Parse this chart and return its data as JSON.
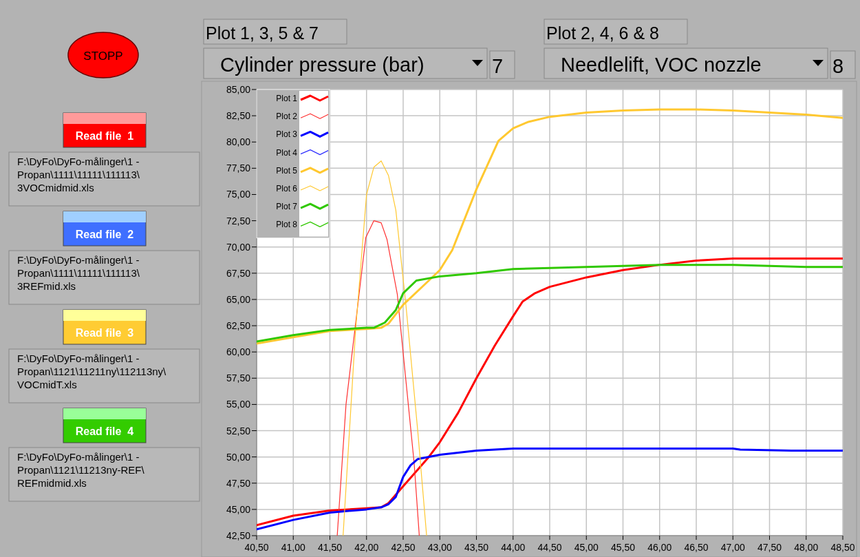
{
  "chart_data": {
    "type": "line",
    "annotations": [
      "STOPP",
      "Plot 1, 3, 5 & 7",
      "Cylinder pressure (bar)",
      "7",
      "Plot 2, 4, 6 & 8",
      "Needlelift, VOC nozzle",
      "8",
      "Read file  1",
      "F:\\DyFo\\DyFo-målinger\\1 -\nPropan\\1111\\11111\\111113\\\n3VOCmidmid.xls",
      "Read file  2",
      "F:\\DyFo\\DyFo-målinger\\1 -\nPropan\\1111\\11111\\111113\\\n3REFmid.xls",
      "Read file  3",
      "F:\\DyFo\\DyFo-målinger\\1 -\nPropan\\1121\\11211ny\\112113ny\\\nVOCmidT.xls",
      "Read file  4",
      "F:\\DyFo\\DyFo-målinger\\1 -\nPropan\\1121\\11213ny-REF\\\nREFmidmid.xls"
    ],
    "xlim": [
      40.5,
      48.5
    ],
    "xticks": [
      {
        "value": 40.5,
        "label": "40,50"
      },
      {
        "value": 41,
        "label": "41,00"
      },
      {
        "value": 41.5,
        "label": "41,50"
      },
      {
        "value": 42,
        "label": "42,00"
      },
      {
        "value": 42.5,
        "label": "42,50"
      },
      {
        "value": 43,
        "label": "43,00"
      },
      {
        "value": 43.5,
        "label": "43,50"
      },
      {
        "value": 44,
        "label": "44,00"
      },
      {
        "value": 44.5,
        "label": "44,50"
      },
      {
        "value": 45,
        "label": "45,00"
      },
      {
        "value": 45.5,
        "label": "45,50"
      },
      {
        "value": 46,
        "label": "46,00"
      },
      {
        "value": 46.5,
        "label": "46,50"
      },
      {
        "value": 47,
        "label": "47,00"
      },
      {
        "value": 47.5,
        "label": "47,50"
      },
      {
        "value": 48,
        "label": "48,00"
      },
      {
        "value": 48.5,
        "label": "48,50"
      }
    ],
    "ylim": [
      42.5,
      85
    ],
    "yticks": [
      {
        "value": 42.5,
        "label": "42,50"
      },
      {
        "value": 45,
        "label": "45,00"
      },
      {
        "value": 47.5,
        "label": "47,50"
      },
      {
        "value": 50,
        "label": "50,00"
      },
      {
        "value": 52.5,
        "label": "52,50"
      },
      {
        "value": 55,
        "label": "55,00"
      },
      {
        "value": 57.5,
        "label": "57,50"
      },
      {
        "value": 60,
        "label": "60,00"
      },
      {
        "value": 62.5,
        "label": "62,50"
      },
      {
        "value": 65,
        "label": "65,00"
      },
      {
        "value": 67.5,
        "label": "67,50"
      },
      {
        "value": 70,
        "label": "70,00"
      },
      {
        "value": 72.5,
        "label": "72,50"
      },
      {
        "value": 75,
        "label": "75,00"
      },
      {
        "value": 77.5,
        "label": "77,50"
      },
      {
        "value": 80,
        "label": "80,00"
      },
      {
        "value": 82.5,
        "label": "82,50"
      },
      {
        "value": 85,
        "label": "85,00"
      }
    ],
    "grid": true,
    "legend": "top left",
    "marker": "none",
    "line_style": "solid",
    "series": [
      {
        "name": "Plot 1",
        "color": "#ff0000",
        "x": [
          40.5,
          41,
          41.5,
          42,
          42.2,
          42.3,
          42.5,
          42.7,
          42.85,
          43,
          43.25,
          43.5,
          43.75,
          44,
          44.13,
          44.3,
          44.5,
          45,
          45.5,
          46,
          46.5,
          47,
          47.5,
          48,
          48.5
        ],
        "values": [
          43.5,
          44.4,
          44.9,
          45.1,
          45.2,
          45.6,
          47.2,
          48.8,
          50,
          51.4,
          54.2,
          57.5,
          60.6,
          63.4,
          64.8,
          65.6,
          66.2,
          67.1,
          67.8,
          68.3,
          68.7,
          68.9,
          68.9,
          68.9,
          68.9
        ]
      },
      {
        "name": "Plot 2",
        "color": "#ff3030",
        "x": [
          41.6,
          41.72,
          41.99,
          42.1,
          42.2,
          42.28,
          42.42,
          42.65,
          42.72
        ],
        "values": [
          42.5,
          55,
          70.9,
          72.5,
          72.3,
          70.7,
          65.5,
          49.4,
          42.5
        ]
      },
      {
        "name": "Plot 3",
        "color": "#0000ff",
        "x": [
          40.5,
          41,
          41.5,
          42,
          42.2,
          42.3,
          42.4,
          42.5,
          42.6,
          42.7,
          43,
          43.5,
          44,
          44.5,
          45,
          46,
          47,
          47.1,
          47.8,
          48.5
        ],
        "values": [
          43.1,
          44,
          44.7,
          45,
          45.2,
          45.5,
          46.2,
          48.1,
          49.2,
          49.8,
          50.2,
          50.6,
          50.8,
          50.8,
          50.8,
          50.8,
          50.8,
          50.7,
          50.6,
          50.6
        ]
      },
      {
        "name": "Plot 4",
        "color": "#3030ff"
      },
      {
        "name": "Plot 5",
        "color": "#ffc830",
        "x": [
          40.5,
          41,
          41.5,
          42,
          42.2,
          42.3,
          42.5,
          42.85,
          43,
          43.17,
          43.5,
          43.8,
          44,
          44.2,
          44.5,
          45,
          45.5,
          46,
          46.5,
          47,
          47.5,
          48,
          48.5
        ],
        "values": [
          60.8,
          61.4,
          62,
          62.2,
          62.3,
          62.7,
          64.5,
          66.8,
          67.8,
          69.7,
          75.5,
          80.1,
          81.3,
          81.9,
          82.4,
          82.8,
          83,
          83.1,
          83.1,
          83,
          82.8,
          82.6,
          82.3
        ]
      },
      {
        "name": "Plot 6",
        "color": "#ffc830",
        "x": [
          41.68,
          41.85,
          42,
          42.1,
          42.2,
          42.3,
          42.4,
          42.54,
          42.7,
          42.82
        ],
        "values": [
          42.5,
          62,
          75,
          77.6,
          78.2,
          76.8,
          73.5,
          64.3,
          52.4,
          42.5
        ]
      },
      {
        "name": "Plot 7",
        "color": "#30c800",
        "x": [
          40.5,
          41,
          41.5,
          42,
          42.1,
          42.25,
          42.4,
          42.5,
          42.68,
          43,
          43.5,
          44,
          44.5,
          45,
          46,
          47,
          47.5,
          48,
          48.5
        ],
        "values": [
          61,
          61.6,
          62.1,
          62.3,
          62.3,
          62.8,
          64,
          65.6,
          66.8,
          67.2,
          67.5,
          67.9,
          68,
          68.1,
          68.3,
          68.3,
          68.2,
          68.1,
          68.1
        ]
      },
      {
        "name": "Plot 8",
        "color": "#30c800"
      }
    ]
  }
}
